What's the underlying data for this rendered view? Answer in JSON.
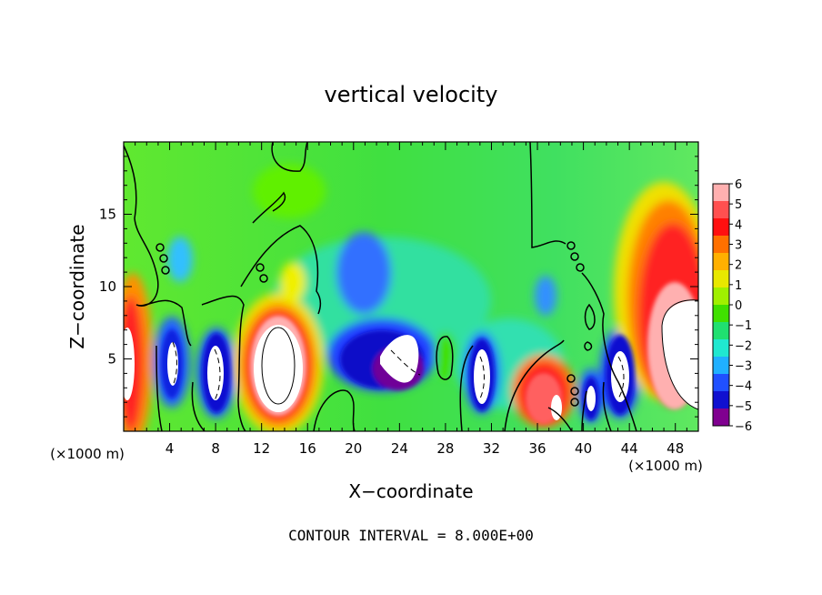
{
  "chart_data": {
    "type": "heatmap",
    "title": "vertical velocity",
    "xlabel": "X−coordinate",
    "ylabel": "Z−coordinate",
    "x_unit_left": "(×1000 m)",
    "x_unit_right": "(×1000 m)",
    "footer": "CONTOUR INTERVAL = 8.000E+00",
    "xlim": [
      0,
      50
    ],
    "ylim": [
      0,
      20
    ],
    "x_ticks": [
      4,
      8,
      12,
      16,
      20,
      24,
      28,
      32,
      36,
      40,
      44,
      48
    ],
    "y_ticks": [
      5,
      10,
      15
    ],
    "colorbar": {
      "ticks": [
        "6",
        "5",
        "4",
        "3",
        "2",
        "1",
        "0",
        "−1",
        "−2",
        "−3",
        "−4",
        "−5",
        "−6"
      ],
      "colors": [
        "#ffb0b0",
        "#ff5050",
        "#ff1010",
        "#ff7000",
        "#ffb000",
        "#e8e800",
        "#a0f000",
        "#40e000",
        "#20e070",
        "#20e8d0",
        "#20b0ff",
        "#2050ff",
        "#1010d0",
        "#800090"
      ]
    },
    "features": [
      {
        "name": "updraft",
        "x": 1,
        "z": 4.8,
        "w_peak": 8
      },
      {
        "name": "downdraft",
        "x": 4,
        "z": 5,
        "w_peak": -6
      },
      {
        "name": "downdraft",
        "x": 8,
        "z": 4,
        "w_peak": -8
      },
      {
        "name": "updraft",
        "x": 13.5,
        "z": 4.5,
        "w_peak": 12
      },
      {
        "name": "downdraft",
        "x": 23,
        "z": 4.5,
        "w_peak": -9
      },
      {
        "name": "downdraft",
        "x": 31,
        "z": 3.5,
        "w_peak": -8
      },
      {
        "name": "updraft",
        "x": 36,
        "z": 3,
        "w_peak": 6
      },
      {
        "name": "downdraft",
        "x": 40.5,
        "z": 2.5,
        "w_peak": -6
      },
      {
        "name": "downdraft",
        "x": 43,
        "z": 4,
        "w_peak": -7
      },
      {
        "name": "updraft",
        "x": 48,
        "z": 7,
        "w_peak": 10
      }
    ]
  }
}
